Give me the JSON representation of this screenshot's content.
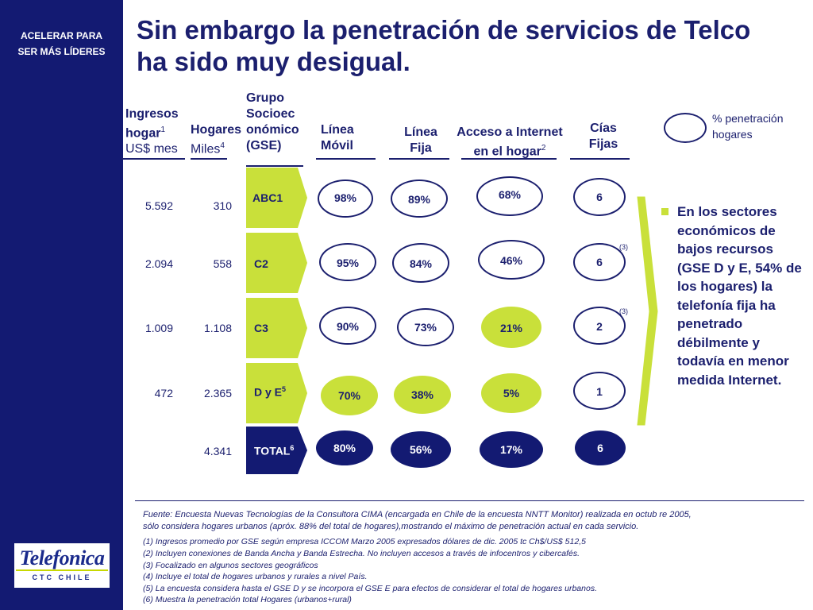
{
  "sidebar": {
    "tagline_line1": "ACELERAR PARA",
    "tagline_line2": "SER MÁS LÍDERES"
  },
  "logo": {
    "brand": "Telefonica",
    "sub": "CTC CHILE"
  },
  "title": {
    "line1": "Sin embargo la penetración de servicios de Telco",
    "line2": "ha sido muy desigual."
  },
  "headers": {
    "ingresos_l1": "Ingresos",
    "ingresos_l2": "hogar",
    "ingresos_sup": "1",
    "ingresos_l3": "US$ mes",
    "hogares_l1": "Hogares",
    "hogares_l2": "Miles",
    "hogares_sup": "4",
    "gse_l1": "Grupo",
    "gse_l2": "Socioec",
    "gse_l3": "onómico",
    "gse_l4": "(GSE)",
    "movil_l1": "Línea",
    "movil_l2": "Móvil",
    "fija_l1": "Línea",
    "fija_l2": "Fija",
    "internet_l1": "Acceso a Internet",
    "internet_l2": "en el hogar",
    "internet_sup": "2",
    "cias_l1": "Cías",
    "cias_l2": "Fijas"
  },
  "legend": {
    "line1": "% penetración",
    "line2": "hogares"
  },
  "rows": [
    {
      "ingresos": "5.592",
      "hogares": "310",
      "gse": "ABC1",
      "gse_sup": "",
      "movil": "98%",
      "fija": "89%",
      "internet": "68%",
      "cias": "6",
      "note": ""
    },
    {
      "ingresos": "2.094",
      "hogares": "558",
      "gse": "C2",
      "gse_sup": "",
      "movil": "95%",
      "fija": "84%",
      "internet": "46%",
      "cias": "6",
      "note": "(3)"
    },
    {
      "ingresos": "1.009",
      "hogares": "1.108",
      "gse": "C3",
      "gse_sup": "",
      "movil": "90%",
      "fija": "73%",
      "internet": "21%",
      "cias": "2",
      "note": "(3)"
    },
    {
      "ingresos": "472",
      "hogares": "2.365",
      "gse": "D y E",
      "gse_sup": "5",
      "movil": "70%",
      "fija": "38%",
      "internet": "5%",
      "cias": "1",
      "note": ""
    },
    {
      "ingresos": "",
      "hogares": "4.341",
      "gse": "TOTAL",
      "gse_sup": "6",
      "movil": "80%",
      "fija": "56%",
      "internet": "17%",
      "cias": "6",
      "note": ""
    }
  ],
  "bullet": "En los sectores económicos de bajos recursos (GSE D y E, 54% de los hogares)  la telefonía fija ha penetrado débilmente y todavía en menor medida Internet.",
  "fuente_l1": "Fuente: Encuesta Nuevas Tecnologías de la Consultora CIMA (encargada en Chile de la encuesta NNTT Monitor) realizada en octub re 2005,",
  "fuente_l2": "sólo considera hogares urbanos (apróx. 88% del total de hogares),mostrando el máximo de penetración actual en cada servicio.",
  "notes": [
    "(1) Ingresos promedio por GSE según empresa ICCOM  Marzo 2005 expresados dólares de dic. 2005 tc Ch$/US$ 512,5",
    "(2) Incluyen conexiones de Banda Ancha y Banda Estrecha. No incluyen accesos a través de infocentros y cibercafés.",
    "(3) Focalizado en algunos sectores geográficos",
    "(4) Incluye el total de hogares urbanos y rurales a nivel País.",
    "(5) La encuesta considera hasta el GSE D y se incorpora el GSE E para efectos de considerar el total de hogares urbanos.",
    "(6) Muestra la penetración total Hogares (urbanos+rural)"
  ],
  "colors": {
    "navy": "#131a72",
    "lime": "#c9e03a",
    "text": "#1b1f6e"
  }
}
